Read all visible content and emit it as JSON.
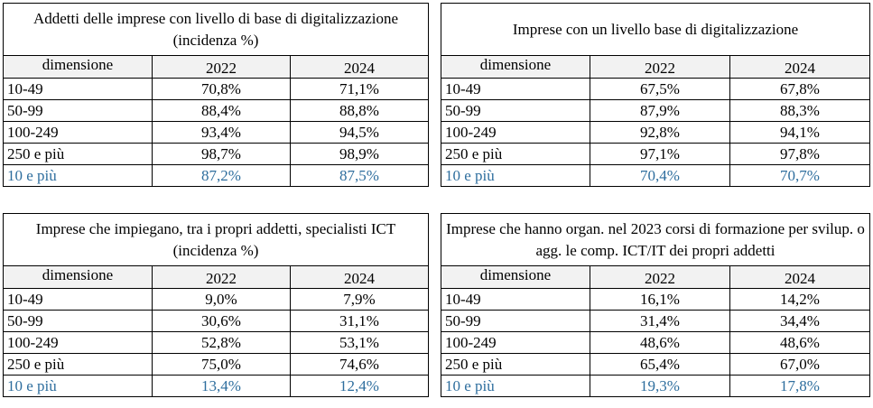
{
  "tables": [
    {
      "title": "Addetti delle imprese con livello di base di digitalizzazione (incidenza %)",
      "header": {
        "dim": "dimensione",
        "y1": "2022",
        "y2": "2024"
      },
      "rows": [
        {
          "label": "10-49",
          "v1": "70,8%",
          "v2": "71,1%"
        },
        {
          "label": "50-99",
          "v1": "88,4%",
          "v2": "88,8%"
        },
        {
          "label": "100-249",
          "v1": "93,4%",
          "v2": "94,5%"
        },
        {
          "label": "250 e più",
          "v1": "98,7%",
          "v2": "98,9%"
        },
        {
          "label": "10 e più",
          "v1": "87,2%",
          "v2": "87,5%"
        }
      ]
    },
    {
      "title": "Imprese con un livello base di digitalizzazione",
      "header": {
        "dim": "dimensione",
        "y1": "2022",
        "y2": "2024"
      },
      "rows": [
        {
          "label": "10-49",
          "v1": "67,5%",
          "v2": "67,8%"
        },
        {
          "label": "50-99",
          "v1": "87,9%",
          "v2": "88,3%"
        },
        {
          "label": "100-249",
          "v1": "92,8%",
          "v2": "94,1%"
        },
        {
          "label": "250 e più",
          "v1": "97,1%",
          "v2": "97,8%"
        },
        {
          "label": "10 e più",
          "v1": "70,4%",
          "v2": "70,7%"
        }
      ]
    },
    {
      "title": "Imprese che impiegano, tra i propri addetti, specialisti ICT  (incidenza %)",
      "header": {
        "dim": "dimensione",
        "y1": "2022",
        "y2": "2024"
      },
      "rows": [
        {
          "label": "10-49",
          "v1": "9,0%",
          "v2": "7,9%"
        },
        {
          "label": "50-99",
          "v1": "30,6%",
          "v2": "31,1%"
        },
        {
          "label": "100-249",
          "v1": "52,8%",
          "v2": "53,1%"
        },
        {
          "label": "250 e più",
          "v1": "75,0%",
          "v2": "74,6%"
        },
        {
          "label": "10 e più",
          "v1": "13,4%",
          "v2": "12,4%"
        }
      ]
    },
    {
      "title": "Imprese che hanno organ. nel 2023 corsi di formazione per svilup. o agg. le comp. ICT/IT dei propri addetti",
      "header": {
        "dim": "dimensione",
        "y1": "2022",
        "y2": "2024"
      },
      "rows": [
        {
          "label": "10-49",
          "v1": "16,1%",
          "v2": "14,2%"
        },
        {
          "label": "50-99",
          "v1": "31,4%",
          "v2": "34,4%"
        },
        {
          "label": "100-249",
          "v1": "48,6%",
          "v2": "48,6%"
        },
        {
          "label": "250 e più",
          "v1": "65,4%",
          "v2": "67,0%"
        },
        {
          "label": "10 e più",
          "v1": "19,3%",
          "v2": "17,8%"
        }
      ]
    }
  ]
}
